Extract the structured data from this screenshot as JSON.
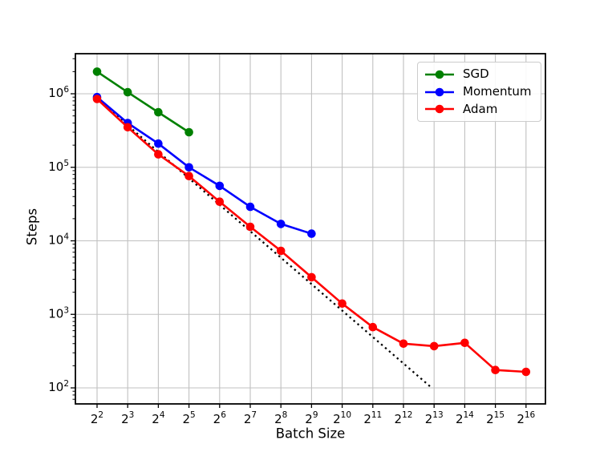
{
  "figure": {
    "background": "#ffffff",
    "grid_color": "#c0c0c0",
    "spine_color": "#000000",
    "text_color": "#000000"
  },
  "chart_data": {
    "type": "line",
    "title": "",
    "xlabel": "Batch Size",
    "ylabel": "Steps",
    "x_scale": "log2",
    "y_scale": "log10",
    "grid": true,
    "legend_position": "upper right",
    "x_tick_base": "2",
    "x_tick_exponents": [
      2,
      3,
      4,
      5,
      6,
      7,
      8,
      9,
      10,
      11,
      12,
      13,
      14,
      15,
      16
    ],
    "y_tick_base": "10",
    "y_tick_exponents": [
      2,
      3,
      4,
      5,
      6
    ],
    "x_range_log2": [
      1.3,
      16.63
    ],
    "y_range_log10": [
      1.78,
      6.55
    ],
    "series": [
      {
        "name": "SGD",
        "color": "#008000",
        "marker": "circle",
        "x": [
          4,
          8,
          16,
          32
        ],
        "y": [
          2000000,
          1050000,
          560000,
          300000
        ]
      },
      {
        "name": "Momentum",
        "color": "#0000ff",
        "marker": "circle",
        "x": [
          4,
          8,
          16,
          32,
          64,
          128,
          256,
          512
        ],
        "y": [
          900000,
          400000,
          210000,
          100000,
          56000,
          29000,
          17000,
          12500
        ]
      },
      {
        "name": "Adam",
        "color": "#ff0000",
        "marker": "circle",
        "x": [
          4,
          8,
          16,
          32,
          64,
          128,
          256,
          512,
          1024,
          2048,
          4096,
          8192,
          16384,
          32768,
          65536
        ],
        "y": [
          850000,
          350000,
          150000,
          76000,
          34000,
          15500,
          7300,
          3200,
          1400,
          670,
          400,
          370,
          410,
          175,
          165
        ]
      }
    ],
    "reference_line": {
      "name": "dotted-reference",
      "style": "dotted",
      "color": "#000000",
      "x": [
        4,
        7580
      ],
      "y": [
        850000,
        103
      ]
    }
  }
}
